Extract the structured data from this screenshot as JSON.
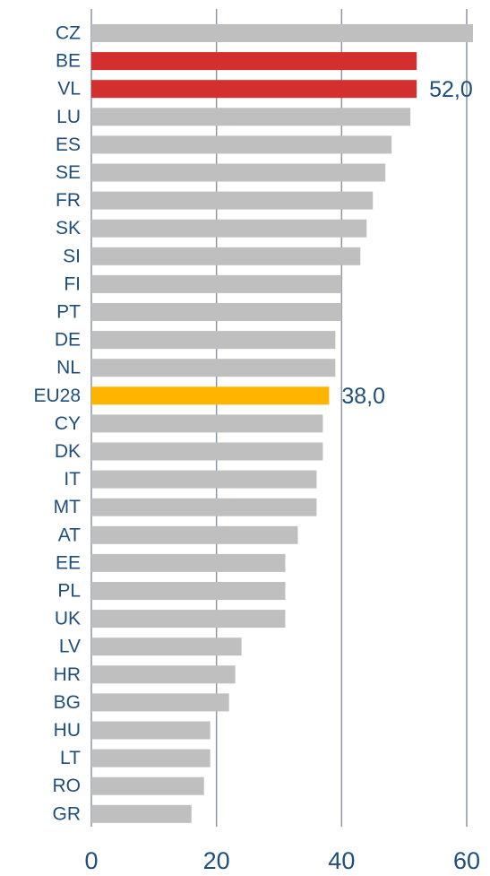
{
  "chart_data": {
    "type": "hbar",
    "categories": [
      "CZ",
      "BE",
      "VL",
      "LU",
      "ES",
      "SE",
      "FR",
      "SK",
      "SI",
      "FI",
      "PT",
      "DE",
      "NL",
      "EU28",
      "CY",
      "DK",
      "IT",
      "MT",
      "AT",
      "EE",
      "PL",
      "UK",
      "LV",
      "HR",
      "BG",
      "HU",
      "LT",
      "RO",
      "GR"
    ],
    "values": [
      61,
      52,
      52,
      51,
      48,
      47,
      45,
      44,
      43,
      40,
      40,
      39,
      39,
      38,
      37,
      37,
      36,
      36,
      33,
      31,
      31,
      31,
      24,
      23,
      22,
      19,
      19,
      18,
      16
    ],
    "value_labels": [
      null,
      null,
      "52,0",
      null,
      null,
      null,
      null,
      null,
      null,
      null,
      null,
      null,
      null,
      "38,0",
      null,
      null,
      null,
      null,
      null,
      null,
      null,
      null,
      null,
      null,
      null,
      null,
      null,
      null,
      null
    ],
    "colors": [
      "#bfbfbf",
      "#d32f2f",
      "#d32f2f",
      "#bfbfbf",
      "#bfbfbf",
      "#bfbfbf",
      "#bfbfbf",
      "#bfbfbf",
      "#bfbfbf",
      "#bfbfbf",
      "#bfbfbf",
      "#bfbfbf",
      "#bfbfbf",
      "#ffb400",
      "#bfbfbf",
      "#bfbfbf",
      "#bfbfbf",
      "#bfbfbf",
      "#bfbfbf",
      "#bfbfbf",
      "#bfbfbf",
      "#bfbfbf",
      "#bfbfbf",
      "#bfbfbf",
      "#bfbfbf",
      "#bfbfbf",
      "#bfbfbf",
      "#bfbfbf",
      "#bfbfbf"
    ],
    "xlim": [
      0,
      60
    ],
    "xticks": [
      0,
      20,
      40,
      60
    ],
    "grid": true
  }
}
